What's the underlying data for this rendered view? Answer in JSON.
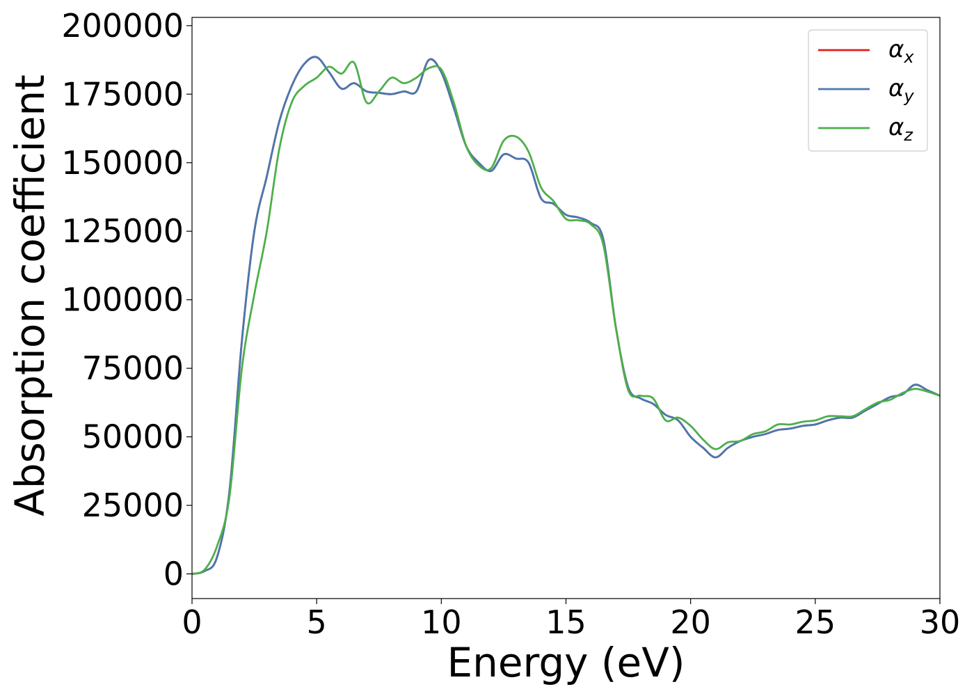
{
  "chart_data": {
    "type": "line",
    "title": "",
    "xlabel": "Energy (eV)",
    "ylabel": "Absorption coefficient",
    "xlim": [
      0,
      30
    ],
    "ylim": [
      -9000,
      203000
    ],
    "xticks": [
      0,
      5,
      10,
      15,
      20,
      25,
      30
    ],
    "yticks": [
      0,
      25000,
      50000,
      75000,
      100000,
      125000,
      150000,
      175000,
      200000
    ],
    "grid": false,
    "legend_position": "top-right",
    "series": [
      {
        "name": "αx",
        "legend_base": "α",
        "legend_sub": "x",
        "color": "#e41a1c",
        "x": [
          0,
          0.5,
          1.0,
          1.5,
          2.0,
          2.5,
          3.0,
          3.5,
          4.0,
          4.5,
          5.0,
          5.5,
          6.0,
          6.5,
          7.0,
          7.5,
          8.0,
          8.5,
          9.0,
          9.5,
          10.0,
          10.5,
          11.0,
          11.5,
          12.0,
          12.5,
          13.0,
          13.5,
          14.0,
          14.5,
          15.0,
          15.5,
          16.0,
          16.5,
          17.0,
          17.5,
          18.0,
          18.5,
          19.0,
          19.5,
          20.0,
          20.5,
          21.0,
          21.5,
          22.0,
          22.5,
          23.0,
          23.5,
          24.0,
          24.5,
          25.0,
          25.5,
          26.0,
          26.5,
          27.0,
          27.5,
          28.0,
          28.5,
          29.0,
          29.5,
          30.0
        ],
        "values": [
          0,
          1000,
          6000,
          30000,
          85000,
          125000,
          145000,
          165000,
          178000,
          186000,
          188500,
          183000,
          177000,
          179000,
          176000,
          175500,
          175000,
          176000,
          176000,
          187500,
          183000,
          170000,
          156000,
          150000,
          147000,
          153000,
          151500,
          150000,
          137000,
          135000,
          131000,
          130000,
          128000,
          122000,
          90000,
          68000,
          64000,
          62000,
          58000,
          56000,
          50000,
          46000,
          42500,
          46000,
          48500,
          50000,
          51000,
          52500,
          53000,
          54000,
          54500,
          56000,
          57000,
          57000,
          59500,
          62000,
          64500,
          65500,
          69000,
          67000,
          65000
        ]
      },
      {
        "name": "αy",
        "legend_base": "α",
        "legend_sub": "y",
        "color": "#4878b0",
        "x": [
          0,
          0.5,
          1.0,
          1.5,
          2.0,
          2.5,
          3.0,
          3.5,
          4.0,
          4.5,
          5.0,
          5.5,
          6.0,
          6.5,
          7.0,
          7.5,
          8.0,
          8.5,
          9.0,
          9.5,
          10.0,
          10.5,
          11.0,
          11.5,
          12.0,
          12.5,
          13.0,
          13.5,
          14.0,
          14.5,
          15.0,
          15.5,
          16.0,
          16.5,
          17.0,
          17.5,
          18.0,
          18.5,
          19.0,
          19.5,
          20.0,
          20.5,
          21.0,
          21.5,
          22.0,
          22.5,
          23.0,
          23.5,
          24.0,
          24.5,
          25.0,
          25.5,
          26.0,
          26.5,
          27.0,
          27.5,
          28.0,
          28.5,
          29.0,
          29.5,
          30.0
        ],
        "values": [
          0,
          1000,
          6000,
          30000,
          85000,
          125000,
          145000,
          165000,
          178000,
          186000,
          188500,
          183000,
          177000,
          179000,
          176000,
          175500,
          175000,
          176000,
          176000,
          187500,
          183000,
          170000,
          156000,
          150000,
          147000,
          153000,
          151500,
          150000,
          137000,
          135000,
          131000,
          130000,
          128000,
          122000,
          90000,
          68000,
          64000,
          62000,
          58000,
          56000,
          50000,
          46000,
          42500,
          46000,
          48500,
          50000,
          51000,
          52500,
          53000,
          54000,
          54500,
          56000,
          57000,
          57000,
          59500,
          62000,
          64500,
          65500,
          69000,
          67000,
          65000
        ]
      },
      {
        "name": "αz",
        "legend_base": "α",
        "legend_sub": "z",
        "color": "#4daf4a",
        "x": [
          0,
          0.5,
          1.0,
          1.5,
          2.0,
          2.5,
          3.0,
          3.5,
          4.0,
          4.5,
          5.0,
          5.5,
          6.0,
          6.5,
          7.0,
          7.5,
          8.0,
          8.5,
          9.0,
          9.5,
          10.0,
          10.5,
          11.0,
          11.5,
          12.0,
          12.5,
          13.0,
          13.5,
          14.0,
          14.5,
          15.0,
          15.5,
          16.0,
          16.5,
          17.0,
          17.5,
          18.0,
          18.5,
          19.0,
          19.5,
          20.0,
          20.5,
          21.0,
          21.5,
          22.0,
          22.5,
          23.0,
          23.5,
          24.0,
          24.5,
          25.0,
          25.5,
          26.0,
          26.5,
          27.0,
          27.5,
          28.0,
          28.5,
          29.0,
          29.5,
          30.0
        ],
        "values": [
          0,
          1500,
          10000,
          28000,
          75000,
          102000,
          125000,
          155000,
          172000,
          178000,
          181000,
          185000,
          182500,
          186500,
          172000,
          176000,
          181000,
          179000,
          181000,
          184500,
          184000,
          172000,
          156000,
          149000,
          148000,
          158000,
          159500,
          154000,
          141000,
          136000,
          129500,
          129000,
          127500,
          120000,
          90000,
          67000,
          65000,
          64000,
          56000,
          57000,
          54000,
          49000,
          45500,
          48000,
          48500,
          51000,
          52000,
          54500,
          54500,
          55500,
          56000,
          57500,
          57500,
          57500,
          60000,
          62500,
          63500,
          66000,
          67500,
          66500,
          65000
        ]
      }
    ]
  }
}
